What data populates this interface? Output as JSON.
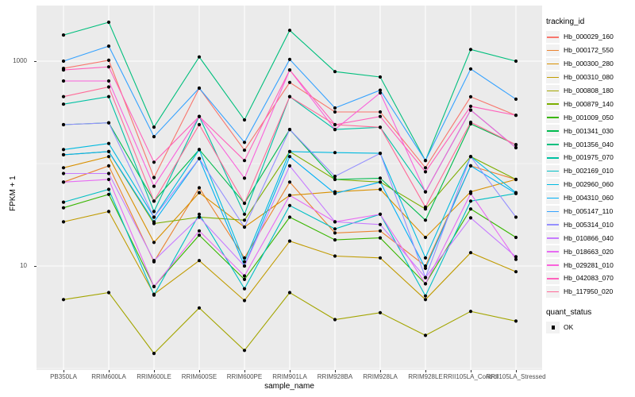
{
  "figure": {
    "y_axis": {
      "title": "FPKM + 1",
      "tick_1000": "1000",
      "tick_10": "10"
    },
    "x_axis": {
      "title": "sample_name"
    },
    "legend": {
      "tracking_title": "tracking_id",
      "quant_title": "quant_status",
      "quant_ok_label": "OK"
    }
  },
  "chart_data": {
    "type": "line",
    "title": "",
    "xlabel": "sample_name",
    "ylabel": "FPKM + 1",
    "y_scale": "log10",
    "y_tick_values": [
      10,
      1000
    ],
    "y_minor_gridlines": [
      1,
      100
    ],
    "ylim": [
      1,
      3500
    ],
    "grid": "on",
    "panel_bg": "#EBEBEB",
    "grid_color": "#FFFFFF",
    "point_color": "#000000",
    "legend_position": "right",
    "legend_titles": [
      "tracking_id",
      "quant_status"
    ],
    "quant_status_items": [
      {
        "label": "OK",
        "marker": "black-point"
      }
    ],
    "categories": [
      "PB350LA",
      "RRIM600LA",
      "RRIM600LE",
      "RRIM600SE",
      "RRIM600PE",
      "RRIM901LA",
      "RRIM928BA",
      "RRIM928LA",
      "RRIM928LE",
      "RRII105LA_Control",
      "RRII105LA_Stressed"
    ],
    "series": [
      {
        "name": "Hb_000029_160",
        "color": "#F8766D",
        "values": [
          850,
          1020,
          73,
          545,
          135,
          620,
          319,
          319,
          91,
          449,
          296
        ]
      },
      {
        "name": "Hb_000172_550",
        "color": "#EA8331",
        "values": [
          66,
          95,
          11,
          58,
          12,
          66,
          21,
          22,
          10,
          95,
          70
        ]
      },
      {
        "name": "Hb_000300_280",
        "color": "#D89000",
        "values": [
          91,
          117,
          17,
          52,
          24,
          49,
          53,
          56,
          19,
          53,
          70
        ]
      },
      {
        "name": "Hb_000310_080",
        "color": "#C09B00",
        "values": [
          27,
          34,
          5.3,
          11.3,
          4.6,
          17.5,
          12.5,
          12,
          4.7,
          13.5,
          8.8
        ]
      },
      {
        "name": "Hb_000808_180",
        "color": "#A3A500",
        "values": [
          4.7,
          5.5,
          1.4,
          3.9,
          1.5,
          5.5,
          3.0,
          3.5,
          2.1,
          3.6,
          2.9
        ]
      },
      {
        "name": "Hb_000879_140",
        "color": "#7CAE00",
        "values": [
          122,
          131,
          26,
          30,
          28,
          131,
          70,
          66,
          36,
          117,
          70
        ]
      },
      {
        "name": "Hb_001009_050",
        "color": "#39B600",
        "values": [
          37,
          50,
          6.3,
          20,
          7.4,
          30,
          18,
          18.8,
          6.7,
          36,
          19
        ]
      },
      {
        "name": "Hb_001341_030",
        "color": "#00BB4E",
        "values": [
          240,
          250,
          43,
          137,
          41,
          215,
          70,
          72,
          28,
          244,
          153
        ]
      },
      {
        "name": "Hb_001356_040",
        "color": "#00BF7D",
        "values": [
          1800,
          2400,
          227,
          1100,
          267,
          2000,
          790,
          700,
          107,
          1300,
          1000
        ]
      },
      {
        "name": "Hb_001975_070",
        "color": "#00C1A3",
        "values": [
          380,
          450,
          34,
          288,
          32,
          450,
          215,
          226,
          53,
          333,
          143
        ]
      },
      {
        "name": "Hb_002169_010",
        "color": "#00BFC4",
        "values": [
          42,
          56,
          5.2,
          32,
          6.0,
          39,
          23,
          32,
          5.1,
          43,
          51
        ]
      },
      {
        "name": "Hb_002960_060",
        "color": "#00BAE0",
        "values": [
          137,
          157,
          30,
          137,
          11,
          131,
          128,
          126,
          12,
          117,
          52
        ]
      },
      {
        "name": "Hb_004310_060",
        "color": "#00B0F6",
        "values": [
          122,
          131,
          27,
          112,
          10,
          117,
          51,
          66,
          9.5,
          95,
          51
        ]
      },
      {
        "name": "Hb_005147_110",
        "color": "#35A2FF",
        "values": [
          1000,
          1400,
          183,
          545,
          161,
          1040,
          349,
          520,
          107,
          840,
          425
        ]
      },
      {
        "name": "Hb_005314_010",
        "color": "#9590FF",
        "values": [
          240,
          250,
          30,
          112,
          24,
          215,
          75,
          126,
          7.7,
          117,
          30
        ]
      },
      {
        "name": "Hb_010866_040",
        "color": "#C77CFF",
        "values": [
          80,
          80,
          11.3,
          30,
          10,
          95,
          27,
          25.4,
          7.7,
          29.5,
          12.3
        ]
      },
      {
        "name": "Hb_018663_020",
        "color": "#E76BF3",
        "values": [
          66,
          70,
          6.3,
          22,
          8,
          49,
          27,
          32,
          6.7,
          51,
          11.6
        ]
      },
      {
        "name": "Hb_029281_010",
        "color": "#FA62DB",
        "values": [
          640,
          640,
          60,
          288,
          72,
          820,
          215,
          490,
          53,
          333,
          143
        ]
      },
      {
        "name": "Hb_042083_070",
        "color": "#FF62BC",
        "values": [
          820,
          880,
          103,
          288,
          107,
          820,
          240,
          288,
          83,
          362,
          296
        ]
      },
      {
        "name": "Hb_117950_020",
        "color": "#FF6A98",
        "values": [
          450,
          560,
          43,
          240,
          41,
          450,
          240,
          226,
          37.5,
          253,
          153
        ]
      }
    ]
  }
}
